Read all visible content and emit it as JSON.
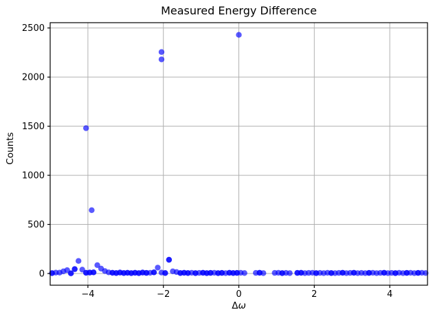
{
  "chart_data": {
    "type": "scatter",
    "title": "Measured Energy Difference",
    "xlabel_delta": "Δ",
    "xlabel_omega": "ω",
    "xlabel": "Δω",
    "ylabel": "Counts",
    "xlim": [
      -5,
      5
    ],
    "ylim": [
      -119,
      2554
    ],
    "xticks": [
      -4,
      -2,
      0,
      2,
      4
    ],
    "xtick_labels": [
      "−4",
      "−2",
      "0",
      "2",
      "4"
    ],
    "yticks": [
      0,
      500,
      1000,
      1500,
      2000,
      2500
    ],
    "ytick_labels": [
      "0",
      "500",
      "1000",
      "1500",
      "2000",
      "2500"
    ],
    "grid": true,
    "legend": false,
    "grid_color": "#b0b0b0",
    "spine_color": "#000000",
    "background_color": "#ffffff",
    "marker": {
      "color": "#0000ff",
      "alpha": 0.65,
      "radius": 4.2
    },
    "peak_values": [
      2430,
      2255,
      2180,
      1480,
      645
    ],
    "points": [
      [
        -4.95,
        4,
        2
      ],
      [
        -4.85,
        9,
        1
      ],
      [
        -4.75,
        9,
        1
      ],
      [
        -4.65,
        22,
        1
      ],
      [
        -4.55,
        34,
        1
      ],
      [
        -4.45,
        2,
        2
      ],
      [
        -4.35,
        45,
        2
      ],
      [
        -4.25,
        128,
        1
      ],
      [
        -4.15,
        40,
        1
      ],
      [
        -4.05,
        1480,
        1
      ],
      [
        -4.05,
        8,
        2
      ],
      [
        -3.95,
        10,
        2
      ],
      [
        -3.9,
        645,
        1
      ],
      [
        -3.85,
        12,
        2
      ],
      [
        -3.75,
        85,
        1
      ],
      [
        -3.65,
        50,
        1
      ],
      [
        -3.55,
        25,
        1
      ],
      [
        -3.45,
        12,
        1
      ],
      [
        -3.35,
        8,
        2
      ],
      [
        -3.25,
        5,
        2
      ],
      [
        -3.15,
        10,
        2
      ],
      [
        -3.05,
        5,
        2
      ],
      [
        -2.95,
        8,
        2
      ],
      [
        -2.85,
        4,
        2
      ],
      [
        -2.75,
        8,
        2
      ],
      [
        -2.65,
        4,
        2
      ],
      [
        -2.55,
        10,
        2
      ],
      [
        -2.45,
        6,
        2
      ],
      [
        -2.35,
        8,
        1
      ],
      [
        -2.25,
        12,
        2
      ],
      [
        -2.15,
        60,
        1
      ],
      [
        -2.05,
        2255,
        1
      ],
      [
        -2.05,
        2180,
        1
      ],
      [
        -2.05,
        10,
        1
      ],
      [
        -1.95,
        5,
        2
      ],
      [
        -1.85,
        140,
        2
      ],
      [
        -1.75,
        22,
        1
      ],
      [
        -1.65,
        15,
        1
      ],
      [
        -1.55,
        5,
        2
      ],
      [
        -1.45,
        8,
        2
      ],
      [
        -1.35,
        5,
        2
      ],
      [
        -1.25,
        8,
        1
      ],
      [
        -1.15,
        4,
        2
      ],
      [
        -1.05,
        6,
        1
      ],
      [
        -0.95,
        8,
        2
      ],
      [
        -0.85,
        4,
        2
      ],
      [
        -0.75,
        6,
        2
      ],
      [
        -0.65,
        8,
        1
      ],
      [
        -0.55,
        4,
        2
      ],
      [
        -0.45,
        6,
        2
      ],
      [
        -0.35,
        4,
        1
      ],
      [
        -0.25,
        8,
        2
      ],
      [
        -0.15,
        5,
        2
      ],
      [
        -0.05,
        6,
        2
      ],
      [
        0.0,
        2430,
        1
      ],
      [
        0.05,
        8,
        1
      ],
      [
        0.15,
        5,
        1
      ],
      [
        0.45,
        6,
        1
      ],
      [
        0.55,
        8,
        2
      ],
      [
        0.65,
        4,
        1
      ],
      [
        0.95,
        6,
        1
      ],
      [
        1.05,
        8,
        1
      ],
      [
        1.15,
        4,
        2
      ],
      [
        1.25,
        6,
        1
      ],
      [
        1.35,
        4,
        1
      ],
      [
        1.55,
        6,
        2
      ],
      [
        1.65,
        8,
        2
      ],
      [
        1.75,
        4,
        1
      ],
      [
        1.85,
        6,
        1
      ],
      [
        1.95,
        8,
        1
      ],
      [
        2.05,
        4,
        2
      ],
      [
        2.15,
        6,
        1
      ],
      [
        2.25,
        4,
        1
      ],
      [
        2.35,
        8,
        1
      ],
      [
        2.45,
        5,
        2
      ],
      [
        2.55,
        4,
        1
      ],
      [
        2.65,
        6,
        1
      ],
      [
        2.75,
        8,
        2
      ],
      [
        2.85,
        4,
        1
      ],
      [
        2.95,
        6,
        1
      ],
      [
        3.05,
        8,
        2
      ],
      [
        3.15,
        4,
        1
      ],
      [
        3.25,
        6,
        1
      ],
      [
        3.35,
        4,
        1
      ],
      [
        3.45,
        6,
        2
      ],
      [
        3.55,
        8,
        1
      ],
      [
        3.65,
        4,
        1
      ],
      [
        3.75,
        6,
        1
      ],
      [
        3.85,
        8,
        2
      ],
      [
        3.95,
        4,
        1
      ],
      [
        4.05,
        6,
        1
      ],
      [
        4.15,
        4,
        2
      ],
      [
        4.25,
        8,
        1
      ],
      [
        4.35,
        4,
        1
      ],
      [
        4.45,
        6,
        2
      ],
      [
        4.55,
        8,
        1
      ],
      [
        4.65,
        4,
        1
      ],
      [
        4.75,
        6,
        2
      ],
      [
        4.85,
        8,
        1
      ],
      [
        4.95,
        5,
        1
      ]
    ]
  }
}
